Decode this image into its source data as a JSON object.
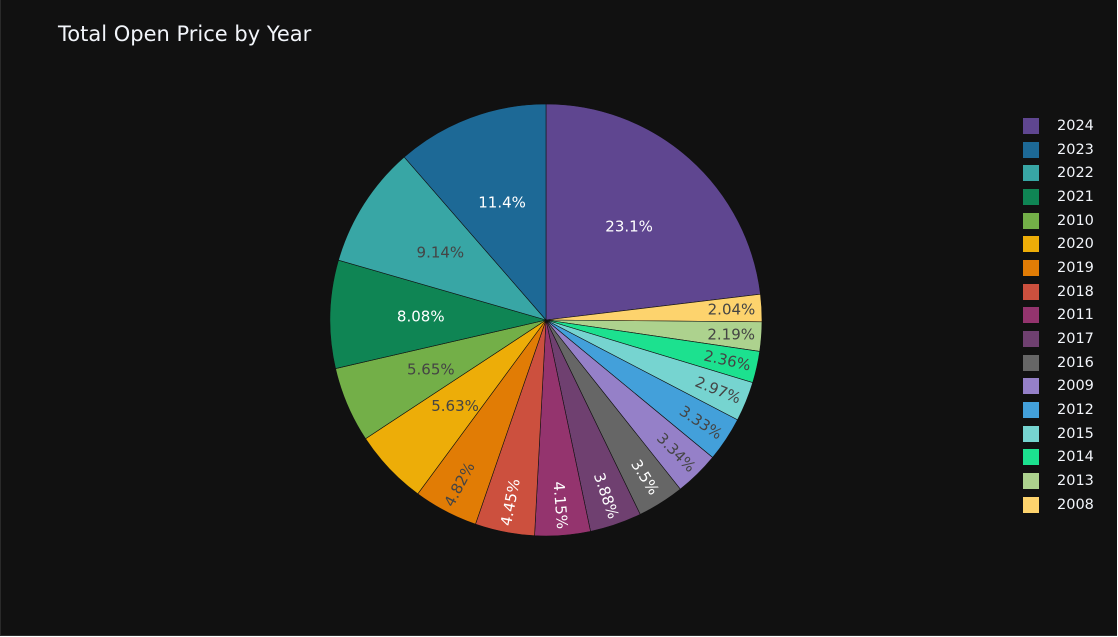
{
  "chart_data": {
    "type": "pie",
    "title": "Total Open Price by Year",
    "legend_position": "right",
    "slices": [
      {
        "label": "2024",
        "value": 23.1,
        "text": "23.1%",
        "color": "#5F4690",
        "text_color": "#ffffff"
      },
      {
        "label": "2008",
        "value": 2.04,
        "text": "2.04%",
        "color": "#FDD36D",
        "text_color": "#444444"
      },
      {
        "label": "2013",
        "value": 2.19,
        "text": "2.19%",
        "color": "#ADD28E",
        "text_color": "#444444"
      },
      {
        "label": "2014",
        "value": 2.36,
        "text": "2.36%",
        "color": "#1CE18F",
        "text_color": "#444444"
      },
      {
        "label": "2015",
        "value": 2.97,
        "text": "2.97%",
        "color": "#76D4D0",
        "text_color": "#444444"
      },
      {
        "label": "2012",
        "value": 3.33,
        "text": "3.33%",
        "color": "#43A0DA",
        "text_color": "#444444"
      },
      {
        "label": "2009",
        "value": 3.34,
        "text": "3.34%",
        "color": "#9580C8",
        "text_color": "#444444"
      },
      {
        "label": "2016",
        "value": 3.5,
        "text": "3.5%",
        "color": "#666666",
        "text_color": "#ffffff"
      },
      {
        "label": "2017",
        "value": 3.88,
        "text": "3.88%",
        "color": "#6F4070",
        "text_color": "#ffffff"
      },
      {
        "label": "2011",
        "value": 4.15,
        "text": "4.15%",
        "color": "#94346E",
        "text_color": "#ffffff"
      },
      {
        "label": "2018",
        "value": 4.45,
        "text": "4.45%",
        "color": "#CC503E",
        "text_color": "#ffffff"
      },
      {
        "label": "2019",
        "value": 4.82,
        "text": "4.82%",
        "color": "#E17C05",
        "text_color": "#444444"
      },
      {
        "label": "2020",
        "value": 5.63,
        "text": "5.63%",
        "color": "#EDAD08",
        "text_color": "#444444"
      },
      {
        "label": "2010",
        "value": 5.65,
        "text": "5.65%",
        "color": "#73AF48",
        "text_color": "#444444"
      },
      {
        "label": "2021",
        "value": 8.08,
        "text": "8.08%",
        "color": "#0F8554",
        "text_color": "#ffffff"
      },
      {
        "label": "2022",
        "value": 9.14,
        "text": "9.14%",
        "color": "#38A6A5",
        "text_color": "#444444"
      },
      {
        "label": "2023",
        "value": 11.4,
        "text": "11.4%",
        "color": "#1D6996",
        "text_color": "#ffffff"
      }
    ],
    "legend": [
      {
        "label": "2024",
        "color": "#5F4690"
      },
      {
        "label": "2023",
        "color": "#1D6996"
      },
      {
        "label": "2022",
        "color": "#38A6A5"
      },
      {
        "label": "2021",
        "color": "#0F8554"
      },
      {
        "label": "2010",
        "color": "#73AF48"
      },
      {
        "label": "2020",
        "color": "#EDAD08"
      },
      {
        "label": "2019",
        "color": "#E17C05"
      },
      {
        "label": "2018",
        "color": "#CC503E"
      },
      {
        "label": "2011",
        "color": "#94346E"
      },
      {
        "label": "2017",
        "color": "#6F4070"
      },
      {
        "label": "2016",
        "color": "#666666"
      },
      {
        "label": "2009",
        "color": "#9580C8"
      },
      {
        "label": "2012",
        "color": "#43A0DA"
      },
      {
        "label": "2015",
        "color": "#76D4D0"
      },
      {
        "label": "2014",
        "color": "#1CE18F"
      },
      {
        "label": "2013",
        "color": "#ADD28E"
      },
      {
        "label": "2008",
        "color": "#FDD36D"
      }
    ]
  }
}
